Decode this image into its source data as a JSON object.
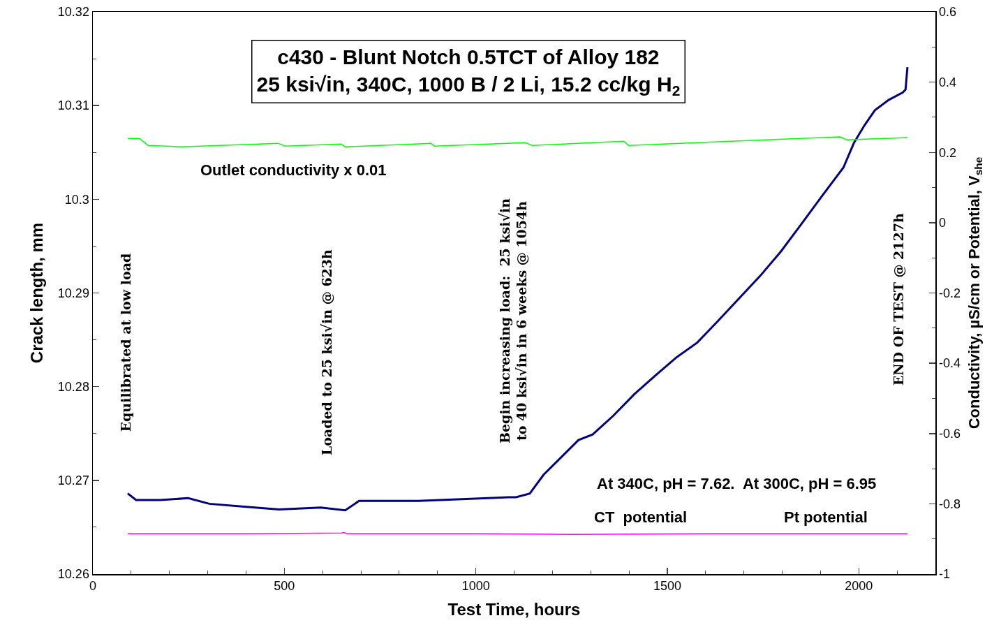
{
  "chart_data": {
    "type": "line",
    "title": "c430 - Blunt Notch 0.5TCT of Alloy 182\n25 ksi√in, 340C, 1000 B / 2 Li, 15.2 cc/kg H$_{2}$",
    "xlabel": "Test Time, hours",
    "ylabel": "Crack length, mm",
    "y2label": "Conductivity, µS/cm or Potential, V$_{she}$",
    "xlim": [
      0,
      2200
    ],
    "xticks": [
      0,
      500,
      1000,
      1500,
      2000
    ],
    "ylim": [
      10.26,
      10.32
    ],
    "yticks": [
      10.26,
      10.27,
      10.28,
      10.29,
      10.3,
      10.31,
      10.32
    ],
    "y2lim": [
      -1,
      0.6
    ],
    "y2ticks": [
      -1,
      -0.8,
      -0.6,
      -0.4,
      -0.2,
      0,
      0.2,
      0.4,
      0.6
    ],
    "grid": false,
    "marker": "none",
    "line_style": "solid",
    "series": [
      {
        "color": "#000080",
        "x": [
          91,
          113,
          176,
          249,
          304,
          395,
          486,
          595,
          659,
          695,
          850,
          1032,
          1086,
          1105,
          1141,
          1177,
          1214,
          1268,
          1305,
          1359,
          1414,
          1469,
          1523,
          1578,
          1632,
          1687,
          1742,
          1796,
          1851,
          1905,
          1960,
          1987,
          2015,
          2042,
          2078,
          2115,
          2122,
          2127
        ],
        "values": [
          10.2686,
          10.2679,
          10.2679,
          10.2681,
          10.2675,
          10.2672,
          10.2669,
          10.2671,
          10.2668,
          10.2678,
          10.2678,
          10.2681,
          10.2682,
          10.2682,
          10.2686,
          10.2706,
          10.2721,
          10.2743,
          10.2749,
          10.2769,
          10.2792,
          10.2812,
          10.2831,
          10.2847,
          10.287,
          10.2894,
          10.2918,
          10.2944,
          10.2974,
          10.3004,
          10.3034,
          10.306,
          10.3079,
          10.3095,
          10.3106,
          10.3114,
          10.3117,
          10.3141
        ]
      },
      {
        "color": "#00ff00",
        "axis": "y2",
        "x": [
          91,
          122,
          144,
          231,
          484,
          502,
          649,
          658,
          883,
          892,
          1129,
          1147,
          1386,
          1399,
          1951,
          1969,
          2127
        ],
        "values": [
          0.24,
          0.24,
          0.22,
          0.216,
          0.226,
          0.218,
          0.224,
          0.216,
          0.226,
          0.218,
          0.228,
          0.22,
          0.232,
          0.22,
          0.244,
          0.236,
          0.242
        ]
      },
      {
        "color": "#ff00ff",
        "axis": "y2",
        "x": [
          91,
          400,
          650,
          655,
          665,
          1000,
          1250,
          1600,
          2127
        ],
        "values": [
          -0.885,
          -0.885,
          -0.883,
          -0.882,
          -0.885,
          -0.885,
          -0.887,
          -0.885,
          -0.885
        ]
      }
    ],
    "annotations": [
      "Equilibrated at low load",
      "Loaded to 25 ksi√in @ 623h",
      "Begin increasing load:  25 ksi√in\nto 40 ksi√in in 6 weeks @ 1054h",
      "END OF TEST @ 2127h",
      "Outlet conductivity x 0.01",
      "At 340C, pH = 7.62.  At 300C, pH = 6.95",
      "CT  potential",
      "Pt potential"
    ]
  }
}
